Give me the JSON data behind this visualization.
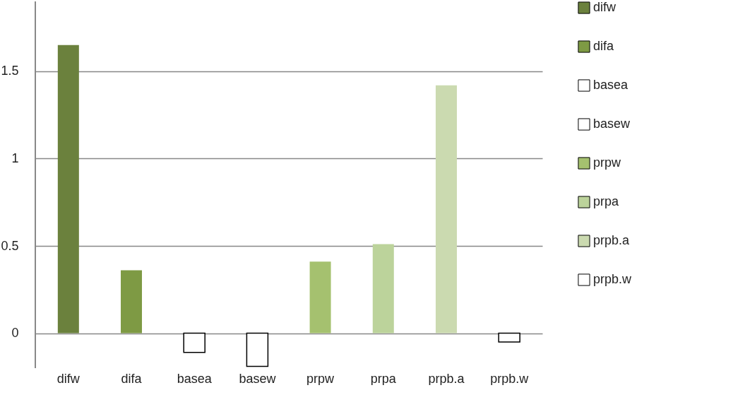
{
  "chart_data": {
    "type": "bar",
    "categories": [
      "difw",
      "difa",
      "basea",
      "basew",
      "prpw",
      "prpa",
      "prpb.a",
      "prpb.w"
    ],
    "series": [
      {
        "name": "difw",
        "color": "#6b813d",
        "values": [
          1.65,
          null,
          null,
          null,
          null,
          null,
          null,
          null
        ]
      },
      {
        "name": "difa",
        "color": "#7e9a44",
        "values": [
          null,
          0.36,
          null,
          null,
          null,
          null,
          null,
          null
        ]
      },
      {
        "name": "basea",
        "color": "#ffffff",
        "values": [
          null,
          null,
          -0.11,
          null,
          null,
          null,
          null,
          null
        ]
      },
      {
        "name": "basew",
        "color": "#ffffff",
        "values": [
          null,
          null,
          null,
          -0.19,
          null,
          null,
          null,
          null
        ]
      },
      {
        "name": "prpw",
        "color": "#a5c16f",
        "values": [
          null,
          null,
          null,
          null,
          0.41,
          null,
          null,
          null
        ]
      },
      {
        "name": "prpa",
        "color": "#bcd39b",
        "values": [
          null,
          null,
          null,
          null,
          null,
          0.51,
          null,
          null
        ]
      },
      {
        "name": "prpb.a",
        "color": "#cbdab0",
        "values": [
          null,
          null,
          null,
          null,
          null,
          null,
          1.42,
          null
        ]
      },
      {
        "name": "prpb.w",
        "color": "#ffffff",
        "values": [
          null,
          null,
          null,
          null,
          null,
          null,
          null,
          -0.05
        ]
      }
    ],
    "ylim": [
      -0.2,
      1.9
    ],
    "yticks": [
      0,
      0.5,
      1,
      1.5
    ],
    "grid": "y",
    "legend": "right"
  }
}
